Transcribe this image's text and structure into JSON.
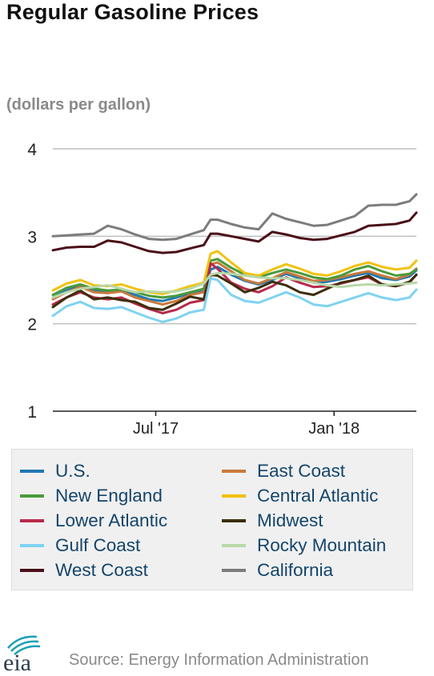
{
  "title": "Regular Gasoline Prices",
  "units": "(dollars per gallon)",
  "source": "Source: Energy Information Administration",
  "logo_text": "eia",
  "colors": {
    "text": "#111111",
    "muted": "#8a8a8a",
    "legend_text": "#14456b",
    "grid": "#bfbfbf",
    "legend_bg": "#f0f0f0",
    "logo_teal": "#1a9fb5",
    "logo_dark": "#2c3e50"
  },
  "chart_data": {
    "type": "line",
    "ylim": [
      1,
      4
    ],
    "yticks": [
      1,
      2,
      3,
      4
    ],
    "x_start": "2017-03-20",
    "x_end": "2018-03-26",
    "xtick_labels": [
      {
        "label": "Jul '17",
        "date": "2017-07-03"
      },
      {
        "label": "Jan '18",
        "date": "2018-01-01"
      }
    ],
    "grid": true,
    "legend_position": "bottom",
    "x": [
      "2017-03-20",
      "2017-04-03",
      "2017-04-17",
      "2017-05-01",
      "2017-05-15",
      "2017-05-29",
      "2017-06-12",
      "2017-06-26",
      "2017-07-10",
      "2017-07-24",
      "2017-08-07",
      "2017-08-21",
      "2017-08-28",
      "2017-09-04",
      "2017-09-18",
      "2017-10-02",
      "2017-10-16",
      "2017-10-30",
      "2017-11-13",
      "2017-11-27",
      "2017-12-11",
      "2017-12-25",
      "2018-01-08",
      "2018-01-22",
      "2018-02-05",
      "2018-02-19",
      "2018-03-05",
      "2018-03-19",
      "2018-03-26"
    ],
    "series": [
      {
        "name": "U.S.",
        "color": "#1f78b4",
        "values": [
          2.3,
          2.38,
          2.43,
          2.38,
          2.37,
          2.38,
          2.33,
          2.28,
          2.26,
          2.3,
          2.35,
          2.37,
          2.62,
          2.65,
          2.56,
          2.49,
          2.45,
          2.5,
          2.57,
          2.52,
          2.47,
          2.48,
          2.51,
          2.55,
          2.58,
          2.52,
          2.5,
          2.54,
          2.61
        ]
      },
      {
        "name": "East Coast",
        "color": "#c9793a",
        "values": [
          2.28,
          2.36,
          2.42,
          2.36,
          2.35,
          2.37,
          2.3,
          2.26,
          2.22,
          2.26,
          2.33,
          2.36,
          2.68,
          2.7,
          2.6,
          2.5,
          2.46,
          2.52,
          2.59,
          2.54,
          2.49,
          2.5,
          2.53,
          2.57,
          2.6,
          2.55,
          2.51,
          2.56,
          2.63
        ]
      },
      {
        "name": "New England",
        "color": "#4a9a3b",
        "values": [
          2.33,
          2.41,
          2.45,
          2.4,
          2.38,
          2.39,
          2.36,
          2.32,
          2.3,
          2.32,
          2.36,
          2.4,
          2.72,
          2.74,
          2.64,
          2.56,
          2.53,
          2.58,
          2.62,
          2.58,
          2.53,
          2.51,
          2.55,
          2.62,
          2.66,
          2.6,
          2.55,
          2.57,
          2.62
        ]
      },
      {
        "name": "Central Atlantic",
        "color": "#f2c10f",
        "values": [
          2.38,
          2.46,
          2.5,
          2.44,
          2.43,
          2.45,
          2.4,
          2.36,
          2.34,
          2.38,
          2.43,
          2.47,
          2.8,
          2.83,
          2.7,
          2.58,
          2.55,
          2.62,
          2.68,
          2.63,
          2.57,
          2.55,
          2.6,
          2.66,
          2.7,
          2.65,
          2.62,
          2.64,
          2.72
        ]
      },
      {
        "name": "Lower Atlantic",
        "color": "#b8294b",
        "values": [
          2.22,
          2.3,
          2.36,
          2.3,
          2.28,
          2.3,
          2.23,
          2.17,
          2.12,
          2.16,
          2.24,
          2.27,
          2.69,
          2.63,
          2.47,
          2.4,
          2.36,
          2.43,
          2.53,
          2.47,
          2.42,
          2.43,
          2.46,
          2.5,
          2.53,
          2.45,
          2.43,
          2.47,
          2.56
        ]
      },
      {
        "name": "Midwest",
        "color": "#3d2d0a",
        "values": [
          2.19,
          2.3,
          2.38,
          2.28,
          2.3,
          2.27,
          2.25,
          2.18,
          2.16,
          2.23,
          2.31,
          2.28,
          2.56,
          2.55,
          2.46,
          2.36,
          2.41,
          2.48,
          2.44,
          2.36,
          2.33,
          2.4,
          2.47,
          2.5,
          2.55,
          2.45,
          2.43,
          2.48,
          2.56
        ]
      },
      {
        "name": "Gulf Coast",
        "color": "#7fd2f2",
        "values": [
          2.09,
          2.2,
          2.25,
          2.18,
          2.17,
          2.19,
          2.13,
          2.07,
          2.02,
          2.06,
          2.13,
          2.16,
          2.52,
          2.5,
          2.33,
          2.26,
          2.24,
          2.3,
          2.36,
          2.3,
          2.22,
          2.2,
          2.25,
          2.3,
          2.35,
          2.3,
          2.27,
          2.3,
          2.39
        ]
      },
      {
        "name": "Rocky Mountain",
        "color": "#b8d8a8",
        "values": [
          2.3,
          2.36,
          2.4,
          2.42,
          2.44,
          2.4,
          2.36,
          2.37,
          2.36,
          2.37,
          2.4,
          2.46,
          2.56,
          2.58,
          2.57,
          2.55,
          2.53,
          2.52,
          2.52,
          2.5,
          2.47,
          2.44,
          2.42,
          2.44,
          2.45,
          2.44,
          2.45,
          2.46,
          2.47
        ]
      },
      {
        "name": "West Coast",
        "color": "#4a0f18",
        "values": [
          2.84,
          2.87,
          2.88,
          2.88,
          2.95,
          2.93,
          2.88,
          2.83,
          2.81,
          2.82,
          2.86,
          2.9,
          3.03,
          3.03,
          3.0,
          2.97,
          2.94,
          3.05,
          3.02,
          2.98,
          2.96,
          2.97,
          3.01,
          3.05,
          3.12,
          3.13,
          3.14,
          3.18,
          3.27
        ]
      },
      {
        "name": "California",
        "color": "#7c7c7c",
        "values": [
          3.0,
          3.01,
          3.02,
          3.03,
          3.12,
          3.08,
          3.02,
          2.97,
          2.96,
          2.97,
          3.02,
          3.07,
          3.19,
          3.19,
          3.14,
          3.1,
          3.08,
          3.26,
          3.2,
          3.16,
          3.12,
          3.13,
          3.18,
          3.23,
          3.35,
          3.36,
          3.36,
          3.4,
          3.48
        ]
      }
    ]
  }
}
